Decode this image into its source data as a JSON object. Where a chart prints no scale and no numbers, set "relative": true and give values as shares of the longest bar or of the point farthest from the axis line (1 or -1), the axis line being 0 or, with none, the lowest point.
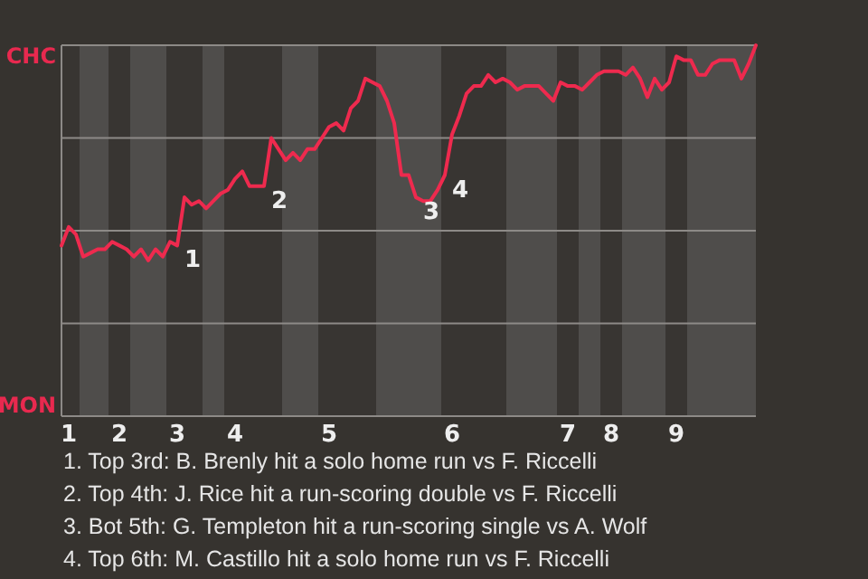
{
  "chart_data": {
    "type": "line",
    "relative": true,
    "categories": [
      null,
      "1",
      null,
      null,
      null,
      null,
      null,
      null,
      "2",
      null,
      null,
      null,
      null,
      null,
      null,
      null,
      "3",
      null,
      null,
      null,
      null,
      null,
      null,
      null,
      "4",
      null,
      null,
      null,
      null,
      null,
      null,
      null,
      null,
      null,
      null,
      null,
      null,
      "5",
      null,
      null,
      null,
      null,
      null,
      null,
      null,
      null,
      null,
      null,
      null,
      null,
      null,
      null,
      null,
      null,
      "6",
      null,
      null,
      null,
      null,
      null,
      null,
      null,
      null,
      null,
      null,
      null,
      null,
      null,
      null,
      null,
      "7",
      null,
      null,
      null,
      null,
      null,
      "8",
      null,
      null,
      null,
      null,
      null,
      null,
      null,
      null,
      "9",
      null,
      null,
      null,
      null,
      null,
      null,
      null,
      null,
      null,
      null,
      null
    ],
    "grid": "y",
    "marker": "none",
    "line_style": "solid",
    "series": [
      {
        "color": "#ee2a4e",
        "values": [
          0.46,
          0.51,
          0.49,
          0.43,
          0.44,
          0.45,
          0.45,
          0.47,
          0.46,
          0.45,
          0.43,
          0.45,
          0.42,
          0.45,
          0.43,
          0.47,
          0.46,
          0.59,
          0.57,
          0.58,
          0.56,
          0.58,
          0.6,
          0.61,
          0.64,
          0.66,
          0.62,
          0.62,
          0.62,
          0.75,
          0.72,
          0.69,
          0.71,
          0.69,
          0.72,
          0.72,
          0.75,
          0.78,
          0.79,
          0.77,
          0.83,
          0.85,
          0.91,
          0.9,
          0.89,
          0.85,
          0.79,
          0.65,
          0.65,
          0.59,
          0.58,
          0.58,
          0.61,
          0.65,
          0.76,
          0.81,
          0.87,
          0.89,
          0.89,
          0.92,
          0.9,
          0.91,
          0.9,
          0.88,
          0.89,
          0.89,
          0.89,
          0.87,
          0.85,
          0.9,
          0.89,
          0.89,
          0.88,
          0.9,
          0.92,
          0.93,
          0.93,
          0.93,
          0.92,
          0.94,
          0.91,
          0.86,
          0.91,
          0.88,
          0.9,
          0.97,
          0.96,
          0.96,
          0.92,
          0.92,
          0.95,
          0.96,
          0.96,
          0.96,
          0.91,
          0.95,
          1
        ]
      }
    ],
    "annotations": [
      "1",
      "2",
      "3",
      "4",
      "CHC",
      "MON",
      "1. Top 3rd: B. Brenly hit a solo home run vs F. Riccelli",
      "2. Top 4th: J. Rice hit a run-scoring double vs F. Riccelli",
      "3. Bot 5th: G. Templeton hit a run-scoring single vs A. Wolf",
      "4. Top 6th: M. Castillo hit a solo home run vs F. Riccelli"
    ]
  }
}
